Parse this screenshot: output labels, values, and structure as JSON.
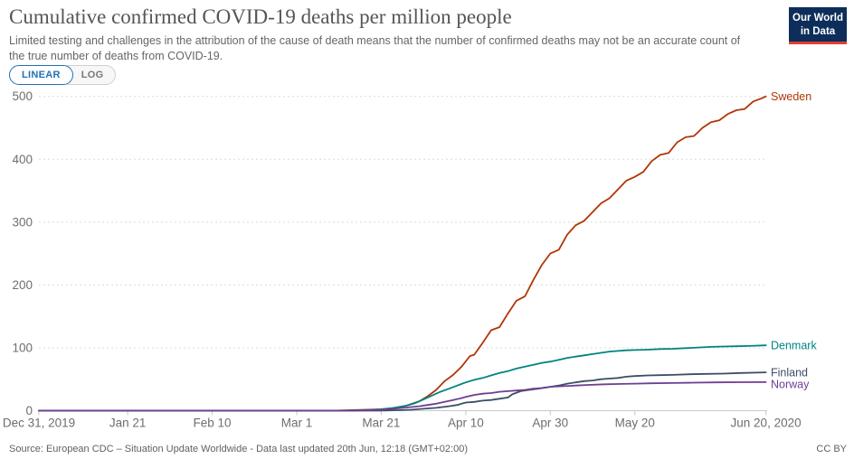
{
  "header": {
    "title": "Cumulative confirmed COVID-19 deaths per million people",
    "subtitle": "Limited testing and challenges in the attribution of the cause of death means that the number of confirmed deaths may not be an accurate count of the true number of deaths from COVID-19.",
    "logo": {
      "line1": "Our World",
      "line2": "in Data",
      "bg_color": "#0D2E5A",
      "stripe_color": "#E23D33"
    }
  },
  "toggle": {
    "linear_label": "LINEAR",
    "log_label": "LOG",
    "active": "LINEAR",
    "accent_color": "#2271B3"
  },
  "chart_data": {
    "type": "line",
    "title": "Cumulative confirmed COVID-19 deaths per million people",
    "xlabel": "",
    "ylabel": "",
    "x_unit": "days since Dec 31, 2019",
    "x_range_days": [
      0,
      172
    ],
    "ylim": [
      0,
      500
    ],
    "y_ticks": [
      0,
      100,
      200,
      300,
      400,
      500
    ],
    "grid": "horizontal-dashed",
    "legend_position": "line-end-labels-right",
    "x_ticks": [
      {
        "day": 0,
        "label": "Dec 31, 2019"
      },
      {
        "day": 21,
        "label": "Jan 21"
      },
      {
        "day": 41,
        "label": "Feb 10"
      },
      {
        "day": 61,
        "label": "Mar 1"
      },
      {
        "day": 81,
        "label": "Mar 21"
      },
      {
        "day": 101,
        "label": "Apr 10"
      },
      {
        "day": 121,
        "label": "Apr 30"
      },
      {
        "day": 141,
        "label": "May 20"
      },
      {
        "day": 172,
        "label": "Jun 20, 2020"
      }
    ],
    "series": [
      {
        "name": "Sweden",
        "color": "#B13507",
        "end_value": 500,
        "points": [
          [
            0,
            0
          ],
          [
            60,
            0
          ],
          [
            70,
            0
          ],
          [
            72,
            0.4
          ],
          [
            75,
            1
          ],
          [
            78,
            1.6
          ],
          [
            81,
            2.3
          ],
          [
            84,
            4
          ],
          [
            87,
            8
          ],
          [
            90,
            15
          ],
          [
            92,
            23
          ],
          [
            94,
            33
          ],
          [
            96,
            47
          ],
          [
            98,
            57
          ],
          [
            100,
            70
          ],
          [
            102,
            87
          ],
          [
            103,
            89
          ],
          [
            105,
            108
          ],
          [
            107,
            128
          ],
          [
            109,
            133
          ],
          [
            111,
            155
          ],
          [
            113,
            175
          ],
          [
            115,
            182
          ],
          [
            117,
            208
          ],
          [
            119,
            232
          ],
          [
            121,
            250
          ],
          [
            123,
            256
          ],
          [
            125,
            280
          ],
          [
            127,
            295
          ],
          [
            129,
            302
          ],
          [
            131,
            316
          ],
          [
            133,
            330
          ],
          [
            135,
            338
          ],
          [
            137,
            352
          ],
          [
            139,
            366
          ],
          [
            141,
            372
          ],
          [
            143,
            380
          ],
          [
            145,
            397
          ],
          [
            147,
            407
          ],
          [
            149,
            410
          ],
          [
            151,
            427
          ],
          [
            153,
            435
          ],
          [
            155,
            437
          ],
          [
            157,
            450
          ],
          [
            159,
            459
          ],
          [
            161,
            462
          ],
          [
            163,
            472
          ],
          [
            165,
            478
          ],
          [
            167,
            480
          ],
          [
            169,
            492
          ],
          [
            171,
            497
          ],
          [
            172,
            500
          ]
        ]
      },
      {
        "name": "Denmark",
        "color": "#00847E",
        "end_value": 104,
        "points": [
          [
            0,
            0
          ],
          [
            70,
            0
          ],
          [
            74,
            0.3
          ],
          [
            77,
            0.9
          ],
          [
            79,
            1.4
          ],
          [
            81,
            2.2
          ],
          [
            84,
            4.5
          ],
          [
            87,
            8
          ],
          [
            89,
            12
          ],
          [
            91,
            18
          ],
          [
            93,
            24
          ],
          [
            95,
            30
          ],
          [
            97,
            35
          ],
          [
            99,
            40
          ],
          [
            101,
            45
          ],
          [
            103,
            49
          ],
          [
            105,
            52
          ],
          [
            107,
            56
          ],
          [
            109,
            60
          ],
          [
            111,
            63
          ],
          [
            113,
            67
          ],
          [
            115,
            70
          ],
          [
            117,
            73
          ],
          [
            119,
            76
          ],
          [
            121,
            78
          ],
          [
            123,
            81
          ],
          [
            125,
            84
          ],
          [
            127,
            86
          ],
          [
            129,
            88
          ],
          [
            131,
            90
          ],
          [
            133,
            92
          ],
          [
            135,
            94
          ],
          [
            137,
            95
          ],
          [
            139,
            96
          ],
          [
            141,
            96.5
          ],
          [
            144,
            97
          ],
          [
            147,
            98
          ],
          [
            150,
            98.5
          ],
          [
            153,
            99.5
          ],
          [
            156,
            100.5
          ],
          [
            159,
            101.5
          ],
          [
            162,
            102
          ],
          [
            165,
            102.5
          ],
          [
            168,
            103
          ],
          [
            172,
            104
          ]
        ]
      },
      {
        "name": "Finland",
        "color": "#3C4E66",
        "end_value": 61,
        "points": [
          [
            0,
            0
          ],
          [
            80,
            0
          ],
          [
            82,
            0.3
          ],
          [
            85,
            0.7
          ],
          [
            88,
            1.5
          ],
          [
            91,
            3
          ],
          [
            94,
            4.5
          ],
          [
            97,
            7
          ],
          [
            99,
            9
          ],
          [
            101,
            13
          ],
          [
            103,
            14
          ],
          [
            105,
            16
          ],
          [
            107,
            17
          ],
          [
            109,
            19
          ],
          [
            111,
            21
          ],
          [
            112,
            26
          ],
          [
            114,
            31
          ],
          [
            116,
            33
          ],
          [
            118,
            35
          ],
          [
            120,
            37
          ],
          [
            121,
            38
          ],
          [
            123,
            40
          ],
          [
            125,
            43
          ],
          [
            127,
            45
          ],
          [
            129,
            47
          ],
          [
            131,
            48
          ],
          [
            133,
            50
          ],
          [
            135,
            51
          ],
          [
            137,
            52
          ],
          [
            139,
            54
          ],
          [
            141,
            55
          ],
          [
            144,
            56
          ],
          [
            147,
            56.5
          ],
          [
            150,
            57
          ],
          [
            154,
            58
          ],
          [
            158,
            58.5
          ],
          [
            162,
            59
          ],
          [
            166,
            60
          ],
          [
            172,
            61
          ]
        ]
      },
      {
        "name": "Norway",
        "color": "#6D3E91",
        "end_value": 45.5,
        "points": [
          [
            0,
            0
          ],
          [
            74,
            0
          ],
          [
            76,
            0.4
          ],
          [
            79,
            1
          ],
          [
            81,
            1.5
          ],
          [
            84,
            3
          ],
          [
            87,
            5
          ],
          [
            90,
            7
          ],
          [
            92,
            9
          ],
          [
            94,
            11
          ],
          [
            96,
            14
          ],
          [
            98,
            17
          ],
          [
            100,
            20
          ],
          [
            101,
            22
          ],
          [
            103,
            25
          ],
          [
            105,
            27
          ],
          [
            107,
            28
          ],
          [
            109,
            30
          ],
          [
            111,
            31
          ],
          [
            113,
            32
          ],
          [
            115,
            33
          ],
          [
            117,
            35
          ],
          [
            119,
            36
          ],
          [
            121,
            38
          ],
          [
            124,
            39
          ],
          [
            127,
            40
          ],
          [
            130,
            41
          ],
          [
            134,
            42
          ],
          [
            138,
            42.5
          ],
          [
            141,
            43
          ],
          [
            145,
            43.5
          ],
          [
            150,
            44
          ],
          [
            155,
            44.5
          ],
          [
            160,
            45
          ],
          [
            166,
            45.3
          ],
          [
            172,
            45.5
          ]
        ]
      }
    ]
  },
  "axis_style": {
    "tick_label_color": "#6e6e6e",
    "gridline_color": "#dcdcdc",
    "axis_line_color": "#c9c9c9"
  },
  "footer": {
    "source": "Source: European CDC – Situation Update Worldwide - Data last updated 20th Jun, 12:18 (GMT+02:00)",
    "license_label": "CC BY"
  }
}
